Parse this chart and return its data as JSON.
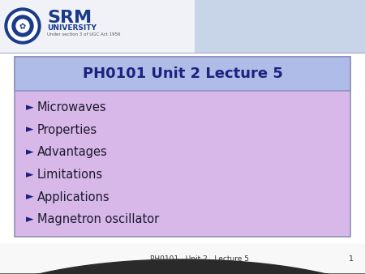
{
  "title": "PH0101 Unit 2 Lecture 5",
  "title_color": "#1a237e",
  "title_bg_color": "#b0bce8",
  "content_bg_color": "#d8b8e8",
  "slide_bg_color": "#ffffff",
  "footer_text": "PH0101   Unit 2   Lecture 5",
  "footer_page": "1",
  "bullet_items": [
    "Microwaves",
    "Properties",
    "Advantages",
    "Limitations",
    "Applications",
    "Magnetron oscillator"
  ],
  "bullet_color": "#1a237e",
  "bullet_text_color": "#1a1a2e",
  "box_border_color": "#9090bb",
  "header_left_bg": "#f0f2f8",
  "header_right_bg": "#c8d4e8",
  "footer_bg": "#f0f0f0",
  "bottom_arc_color": "#404040",
  "srm_color": "#1a3a8a",
  "university_color": "#1a3a8a"
}
